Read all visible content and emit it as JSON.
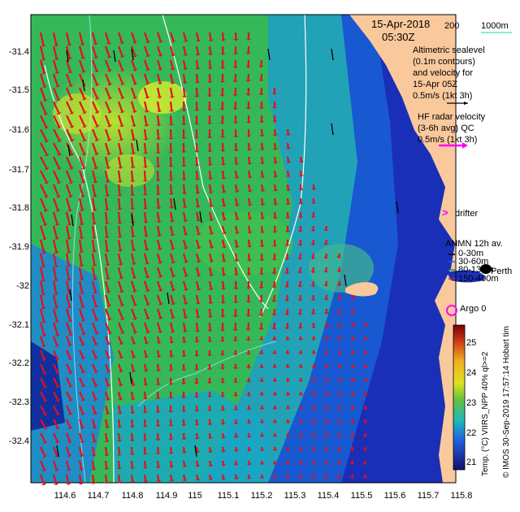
{
  "header": {
    "date": "15-Apr-2018",
    "time": "05:30Z",
    "scale_label": "200",
    "depth_contour_label": "1000m"
  },
  "legend": {
    "altimetric_line1": "Altimetric sealevel",
    "altimetric_line2": "(0.1m contours)",
    "altimetric_line3": "and velocity for",
    "altimetric_line4": "15-Apr 05Z",
    "altimetric_line5": "0.5m/s (1kt 3h)",
    "hf_line1": "HF radar velocity",
    "hf_line2": "(3-6h avg) QC",
    "hf_line3": "0.5m/s (1kt 3h)",
    "drifter": "drifter",
    "anmn_title": "ANMN 12h av.",
    "anmn_1": "0-30m",
    "anmn_2": "30-60m",
    "anmn_3": "80-130m",
    "anmn_4": "150-400m",
    "place_name": "Perth",
    "argo": "Argo 0",
    "hobart_time": "Hobart tim"
  },
  "colorbar": {
    "label": "Temp. (°C) VIIRS_NPP 40% ql>=2",
    "ticks": [
      "25",
      "24",
      "23",
      "22",
      "21"
    ]
  },
  "credit": "© IMOS 30-Sep-2019 17:57:14",
  "y_axis": {
    "ticks": [
      "-31.4",
      "-31.5",
      "-31.6",
      "-31.7",
      "-31.8",
      "-31.9",
      "-32",
      "-32.1",
      "-32.2",
      "-32.3",
      "-32.4"
    ]
  },
  "x_axis": {
    "ticks": [
      "114.6",
      "114.7",
      "114.8",
      "114.9",
      "115",
      "115.1",
      "115.2",
      "115.3",
      "115.4",
      "115.5",
      "115.6",
      "115.7",
      "115.8"
    ]
  },
  "colors": {
    "land": "#f9c99c",
    "warm_green": "#3fbf4a",
    "cool_blue": "#1e64d8",
    "hf_arrow": "#e3101a",
    "altimetric_arrow": "#000000",
    "drifter": "#ff00ff"
  }
}
